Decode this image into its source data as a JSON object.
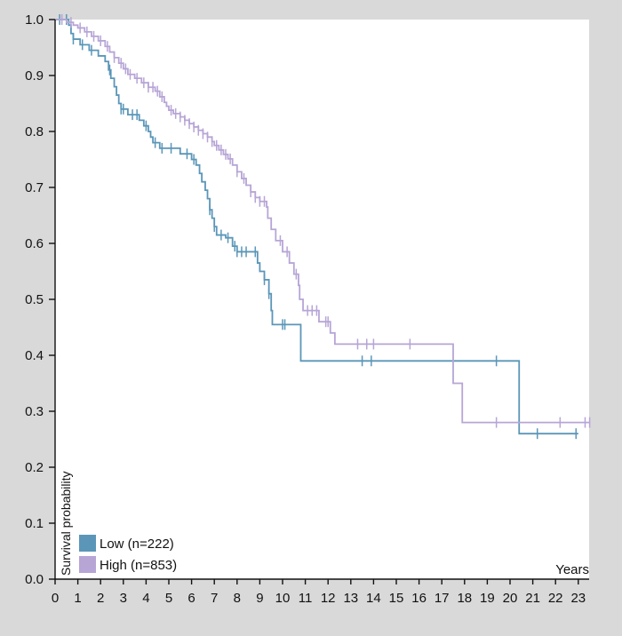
{
  "chart_data": {
    "type": "line",
    "subtype": "kaplan-meier",
    "ylabel": "Survival probability",
    "xlabel": "Years",
    "xlim": [
      0,
      23.5
    ],
    "ylim": [
      0,
      1.0
    ],
    "x_ticks": [
      0,
      1,
      2,
      3,
      4,
      5,
      6,
      7,
      8,
      9,
      10,
      11,
      12,
      13,
      14,
      15,
      16,
      17,
      18,
      19,
      20,
      21,
      22,
      23
    ],
    "y_ticks": [
      {
        "value": 0.0,
        "label": "0.0"
      },
      {
        "value": 0.1,
        "label": "0.1"
      },
      {
        "value": 0.2,
        "label": "0.2"
      },
      {
        "value": 0.3,
        "label": "0.3"
      },
      {
        "value": 0.4,
        "label": "0.4"
      },
      {
        "value": 0.5,
        "label": "0.5"
      },
      {
        "value": 0.6,
        "label": "0.6"
      },
      {
        "value": 0.7,
        "label": "0.7"
      },
      {
        "value": 0.8,
        "label": "0.8"
      },
      {
        "value": 0.9,
        "label": "0.9"
      },
      {
        "value": 1.0,
        "label": "1.0"
      }
    ],
    "legend": {
      "position": "bottom-left",
      "entries": [
        {
          "name": "Low (n=222)",
          "color": "#5b96b8"
        },
        {
          "name": "High (n=853)",
          "color": "#b7a5d6"
        }
      ]
    },
    "series": [
      {
        "name": "Low (n=222)",
        "color": "#5b96b8",
        "steps": [
          [
            0,
            1.0
          ],
          [
            0.6,
            0.99
          ],
          [
            0.7,
            0.975
          ],
          [
            0.8,
            0.965
          ],
          [
            1.1,
            0.955
          ],
          [
            1.5,
            0.945
          ],
          [
            1.9,
            0.935
          ],
          [
            2.2,
            0.925
          ],
          [
            2.35,
            0.91
          ],
          [
            2.45,
            0.895
          ],
          [
            2.6,
            0.88
          ],
          [
            2.7,
            0.865
          ],
          [
            2.8,
            0.85
          ],
          [
            2.9,
            0.84
          ],
          [
            3.2,
            0.83
          ],
          [
            3.7,
            0.82
          ],
          [
            3.9,
            0.81
          ],
          [
            4.1,
            0.8
          ],
          [
            4.2,
            0.79
          ],
          [
            4.3,
            0.78
          ],
          [
            4.6,
            0.77
          ],
          [
            5.5,
            0.76
          ],
          [
            6.0,
            0.75
          ],
          [
            6.2,
            0.74
          ],
          [
            6.35,
            0.725
          ],
          [
            6.45,
            0.71
          ],
          [
            6.6,
            0.695
          ],
          [
            6.7,
            0.68
          ],
          [
            6.8,
            0.66
          ],
          [
            6.9,
            0.645
          ],
          [
            7.0,
            0.63
          ],
          [
            7.1,
            0.615
          ],
          [
            7.5,
            0.61
          ],
          [
            7.8,
            0.595
          ],
          [
            8.0,
            0.585
          ],
          [
            8.9,
            0.565
          ],
          [
            9.0,
            0.55
          ],
          [
            9.2,
            0.535
          ],
          [
            9.4,
            0.51
          ],
          [
            9.5,
            0.48
          ],
          [
            9.55,
            0.455
          ],
          [
            10.8,
            0.39
          ],
          [
            20.4,
            0.26
          ],
          [
            23.0,
            0.26
          ]
        ],
        "censor_times": [
          0.2,
          0.5,
          0.8,
          1.2,
          1.6,
          2.4,
          2.9,
          3.0,
          3.4,
          3.6,
          4.0,
          4.4,
          4.7,
          5.1,
          5.8,
          6.1,
          6.8,
          7.0,
          7.3,
          7.6,
          7.9,
          8.0,
          8.2,
          8.4,
          8.8,
          9.2,
          9.4,
          10.0,
          10.1,
          13.5,
          13.9,
          19.4,
          21.2,
          22.9
        ]
      },
      {
        "name": "High (n=853)",
        "color": "#b7a5d6",
        "steps": [
          [
            0,
            1.0
          ],
          [
            0.5,
            0.995
          ],
          [
            0.8,
            0.99
          ],
          [
            1.0,
            0.985
          ],
          [
            1.3,
            0.978
          ],
          [
            1.6,
            0.97
          ],
          [
            1.9,
            0.962
          ],
          [
            2.2,
            0.952
          ],
          [
            2.4,
            0.942
          ],
          [
            2.6,
            0.932
          ],
          [
            2.8,
            0.922
          ],
          [
            3.0,
            0.912
          ],
          [
            3.2,
            0.902
          ],
          [
            3.5,
            0.895
          ],
          [
            3.8,
            0.887
          ],
          [
            4.1,
            0.879
          ],
          [
            4.4,
            0.872
          ],
          [
            4.6,
            0.862
          ],
          [
            4.8,
            0.852
          ],
          [
            4.9,
            0.845
          ],
          [
            5.0,
            0.838
          ],
          [
            5.2,
            0.832
          ],
          [
            5.5,
            0.826
          ],
          [
            5.7,
            0.82
          ],
          [
            5.9,
            0.814
          ],
          [
            6.1,
            0.808
          ],
          [
            6.3,
            0.802
          ],
          [
            6.5,
            0.796
          ],
          [
            6.7,
            0.79
          ],
          [
            6.9,
            0.782
          ],
          [
            7.0,
            0.775
          ],
          [
            7.2,
            0.767
          ],
          [
            7.4,
            0.759
          ],
          [
            7.6,
            0.751
          ],
          [
            7.8,
            0.74
          ],
          [
            8.0,
            0.728
          ],
          [
            8.2,
            0.716
          ],
          [
            8.4,
            0.704
          ],
          [
            8.6,
            0.692
          ],
          [
            8.8,
            0.682
          ],
          [
            9.0,
            0.675
          ],
          [
            9.3,
            0.665
          ],
          [
            9.35,
            0.645
          ],
          [
            9.5,
            0.625
          ],
          [
            9.7,
            0.605
          ],
          [
            10.0,
            0.585
          ],
          [
            10.3,
            0.565
          ],
          [
            10.5,
            0.545
          ],
          [
            10.7,
            0.525
          ],
          [
            10.75,
            0.5
          ],
          [
            10.9,
            0.48
          ],
          [
            11.6,
            0.46
          ],
          [
            12.1,
            0.44
          ],
          [
            12.3,
            0.42
          ],
          [
            17.5,
            0.35
          ],
          [
            17.9,
            0.28
          ],
          [
            23.5,
            0.28
          ]
        ],
        "censor_times": [
          0.3,
          0.7,
          1.1,
          1.4,
          1.7,
          2.0,
          2.3,
          2.6,
          2.9,
          3.1,
          3.3,
          3.6,
          3.9,
          4.1,
          4.3,
          4.5,
          4.7,
          5.1,
          5.3,
          5.5,
          5.7,
          5.9,
          6.1,
          6.3,
          6.5,
          6.7,
          6.9,
          7.1,
          7.3,
          7.5,
          7.7,
          8.0,
          8.3,
          8.6,
          8.8,
          9.0,
          9.2,
          9.9,
          10.2,
          10.6,
          11.1,
          11.3,
          11.5,
          11.9,
          12.0,
          13.3,
          13.7,
          14.0,
          15.6,
          19.4,
          22.2,
          23.3,
          23.5
        ]
      }
    ]
  }
}
